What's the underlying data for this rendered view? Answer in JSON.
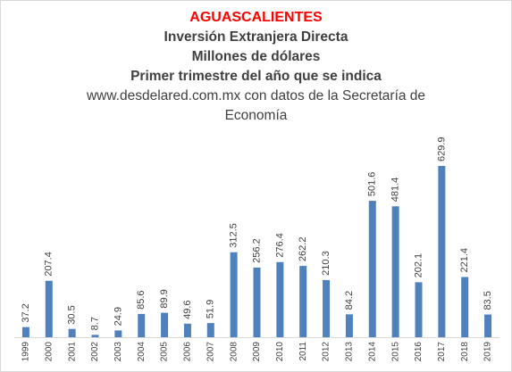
{
  "chart_data": {
    "type": "bar",
    "title": "AGUASCALIENTES",
    "subtitles": [
      "Inversión Extranjera Directa",
      "Millones de dólares",
      "Primer trimestre del año que se indica"
    ],
    "source": "www.desdelared.com.mx con datos de la Secretaría de Economía",
    "categories": [
      "1999",
      "2000",
      "2001",
      "2002",
      "2003",
      "2004",
      "2005",
      "2006",
      "2007",
      "2008",
      "2009",
      "2010",
      "2011",
      "2012",
      "2013",
      "2014",
      "2015",
      "2016",
      "2017",
      "2018",
      "2019"
    ],
    "values": [
      37.2,
      207.4,
      30.5,
      8.7,
      24.9,
      85.6,
      89.9,
      49.6,
      51.9,
      312.5,
      256.2,
      276.4,
      262.2,
      210.3,
      84.2,
      501.6,
      481.4,
      202.1,
      629.9,
      221.4,
      83.5
    ],
    "color": "#4f81bd"
  }
}
